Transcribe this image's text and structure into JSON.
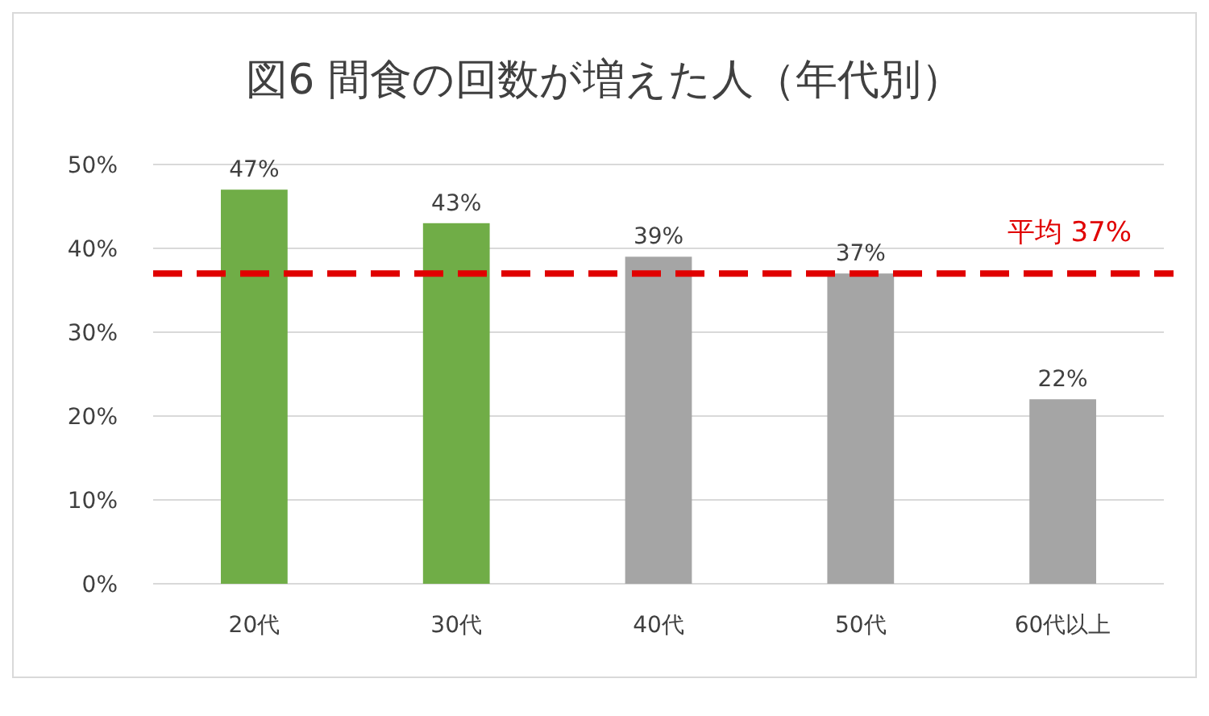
{
  "chart_data": {
    "type": "bar",
    "title": "図6 間食の回数が増えた人（年代別）",
    "categories": [
      "20代",
      "30代",
      "40代",
      "50代",
      "60代以上"
    ],
    "values": [
      47,
      43,
      39,
      37,
      22
    ],
    "colors": [
      "#70ad47",
      "#70ad47",
      "#a5a5a5",
      "#a5a5a5",
      "#a5a5a5"
    ],
    "value_labels": [
      "47%",
      "43%",
      "39%",
      "37%",
      "22%"
    ],
    "ylim": [
      0,
      50
    ],
    "yticks": [
      {
        "value": 0,
        "label": "0%"
      },
      {
        "value": 10,
        "label": "10%"
      },
      {
        "value": 20,
        "label": "20%"
      },
      {
        "value": 30,
        "label": "30%"
      },
      {
        "value": 40,
        "label": "40%"
      },
      {
        "value": 50,
        "label": "50%"
      }
    ],
    "grid": "y",
    "ref_lines": [
      {
        "axis": "y",
        "value": 37,
        "label": "平均 37%",
        "color": "#e00000",
        "line_style": "dashed"
      }
    ]
  }
}
